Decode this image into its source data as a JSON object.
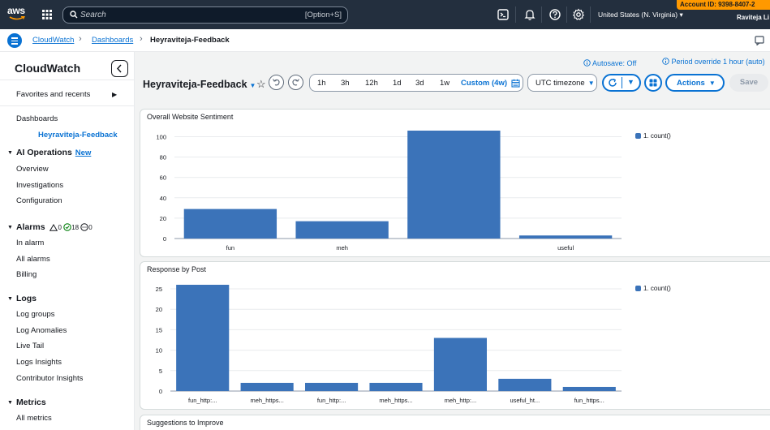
{
  "topbar": {
    "logo": "aws",
    "search_placeholder": "Search",
    "search_shortcut": "[Option+S]",
    "region": "United States (N. Virginia)",
    "account_id": "Account ID: 9398-8407-2",
    "user": "Raviteja Li"
  },
  "breadcrumb": {
    "items": [
      "CloudWatch",
      "Dashboards",
      "Heyraviteja-Feedback"
    ]
  },
  "sidebar": {
    "title": "CloudWatch",
    "favorites": "Favorites and recents",
    "dashboards": "Dashboards",
    "dashboard_active": "Heyraviteja-Feedback",
    "ai_ops": {
      "label": "AI Operations",
      "badge": "New",
      "items": [
        "Overview",
        "Investigations",
        "Configuration"
      ]
    },
    "alarms": {
      "label": "Alarms",
      "warn": "0",
      "ok": "18",
      "insufficient": "0",
      "items": [
        "In alarm",
        "All alarms",
        "Billing"
      ]
    },
    "logs": {
      "label": "Logs",
      "items": [
        "Log groups",
        "Log Anomalies",
        "Live Tail",
        "Logs Insights",
        "Contributor Insights"
      ]
    },
    "metrics": {
      "label": "Metrics",
      "items": [
        "All metrics"
      ]
    }
  },
  "toolbar": {
    "autosave": "Autosave: Off",
    "period_override": "Period override 1 hour (auto)",
    "dashboard_title": "Heyraviteja-Feedback",
    "time_ranges": [
      "1h",
      "3h",
      "12h",
      "1d",
      "3d",
      "1w"
    ],
    "custom_range": "Custom (4w)",
    "timezone": "UTC timezone",
    "actions": "Actions",
    "save": "Save"
  },
  "widgets": {
    "sentiment_title": "Overall Website Sentiment",
    "response_title": "Response by Post",
    "suggestions_title": "Suggestions to Improve"
  },
  "chart_data": [
    {
      "type": "bar",
      "title": "Overall Website Sentiment",
      "categories": [
        "fun",
        "meh",
        "",
        "useful"
      ],
      "series": [
        {
          "name": "1. count()",
          "values": [
            29,
            17,
            106,
            3
          ]
        }
      ],
      "yticks": [
        0,
        20,
        40,
        60,
        80,
        100
      ],
      "ylim": [
        0,
        106
      ],
      "legend": "right",
      "color": "#3b73b9"
    },
    {
      "type": "bar",
      "title": "Response by Post",
      "categories": [
        "fun_http:...",
        "meh_https...",
        "fun_http:...",
        "meh_https...",
        "meh_http:...",
        "useful_ht...",
        "fun_https..."
      ],
      "series": [
        {
          "name": "1. count()",
          "values": [
            26,
            2,
            2,
            2,
            13,
            3,
            1
          ]
        }
      ],
      "yticks": [
        0,
        5,
        10,
        15,
        20,
        25
      ],
      "ylim": [
        0,
        26
      ],
      "legend": "right",
      "color": "#3b73b9"
    }
  ]
}
